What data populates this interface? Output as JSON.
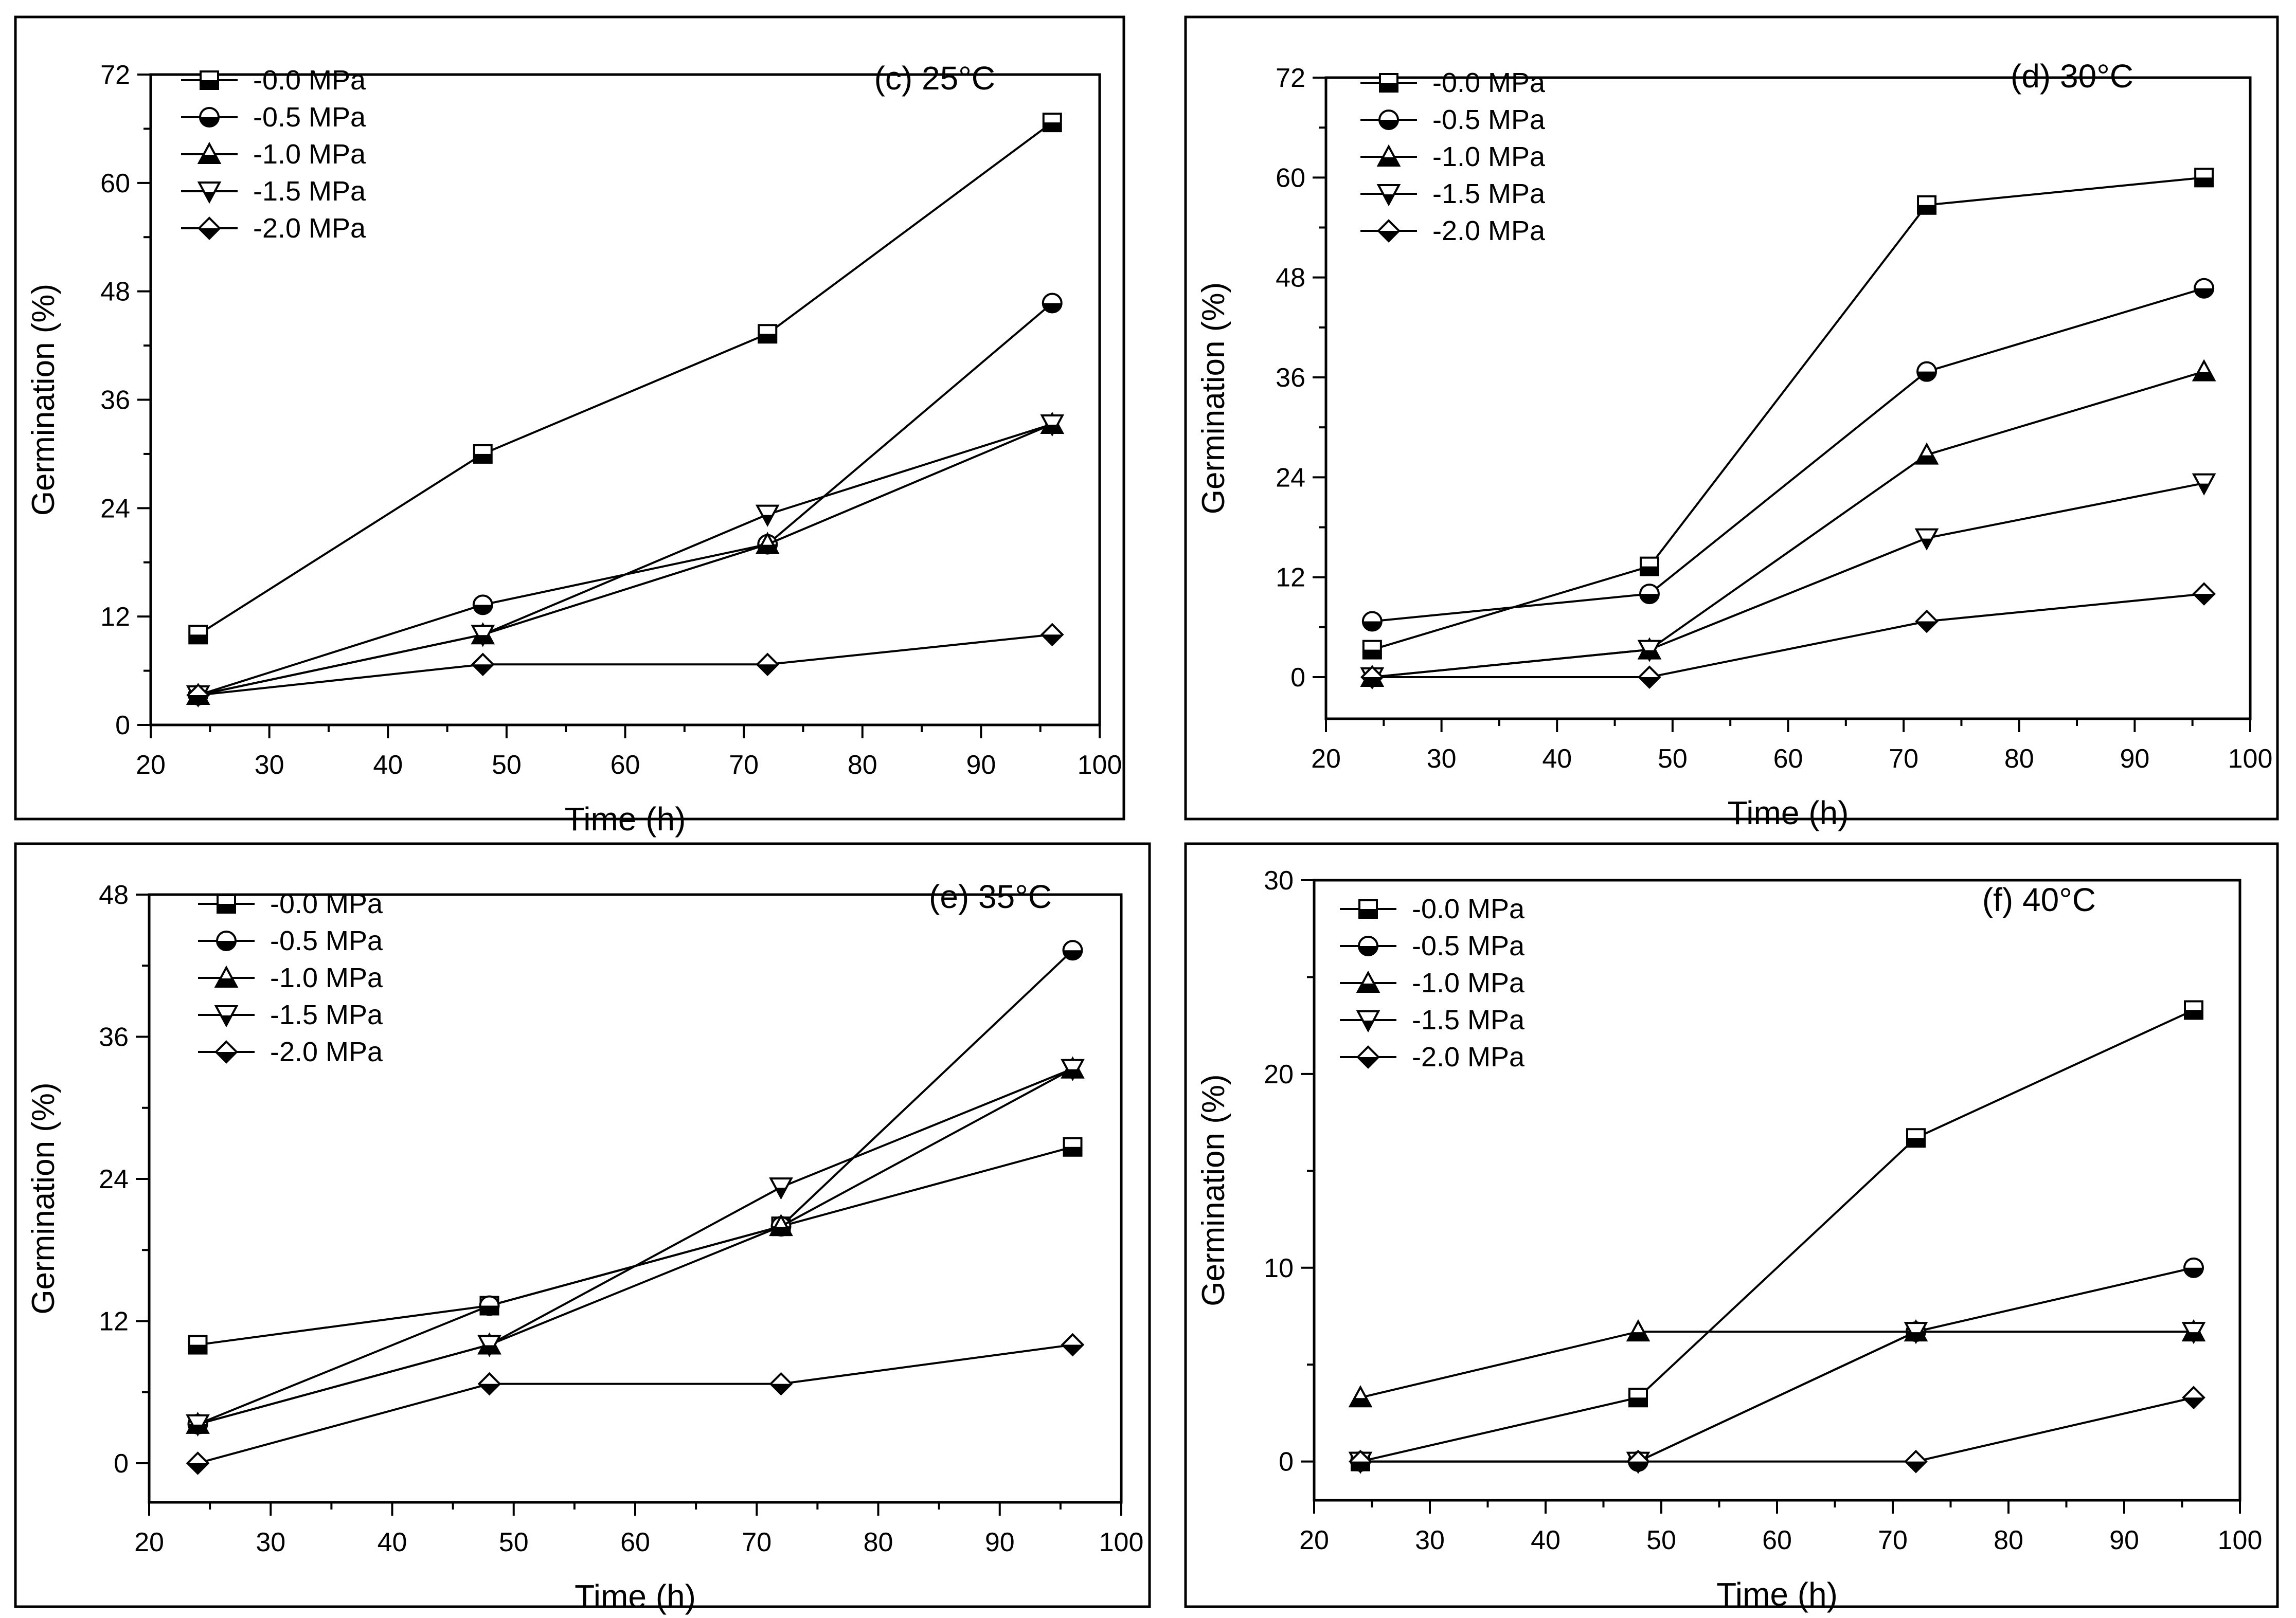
{
  "figure": {
    "description_type": "four-panel germination line chart",
    "marker_legend": [
      "-0.0 MPa",
      "-0.5 MPa",
      "-1.0 MPa",
      "-1.5 MPa",
      "-2.0 MPa"
    ]
  },
  "chart_data": [
    {
      "type": "line",
      "title": "(c) 25°C",
      "xlabel": "Time (h)",
      "ylabel": "Germination (%)",
      "xlim": [
        20,
        100
      ],
      "ylim": [
        0,
        72
      ],
      "xticks": [
        20,
        30,
        40,
        50,
        60,
        70,
        80,
        90,
        100
      ],
      "yticks": [
        0,
        12,
        24,
        36,
        48,
        60,
        72
      ],
      "x": [
        24,
        48,
        72,
        96
      ],
      "legend_position": "top-left",
      "series": [
        {
          "name": "-0.0 MPa",
          "marker": "square",
          "values": [
            10,
            30,
            43.3,
            66.7
          ]
        },
        {
          "name": "-0.5 MPa",
          "marker": "circle",
          "values": [
            3.3,
            13.3,
            20,
            46.7
          ]
        },
        {
          "name": "-1.0 MPa",
          "marker": "triangle-up",
          "values": [
            3.3,
            10,
            20,
            33.3
          ]
        },
        {
          "name": "-1.5 MPa",
          "marker": "triangle-down",
          "values": [
            3.3,
            10,
            23.3,
            33.3
          ]
        },
        {
          "name": "-2.0 MPa",
          "marker": "diamond",
          "values": [
            3.3,
            6.7,
            6.7,
            10
          ]
        }
      ]
    },
    {
      "type": "line",
      "title": "(d) 30°C",
      "xlabel": "Time (h)",
      "ylabel": "Germination (%)",
      "xlim": [
        20,
        100
      ],
      "ylim": [
        -5,
        72
      ],
      "xticks": [
        20,
        30,
        40,
        50,
        60,
        70,
        80,
        90,
        100
      ],
      "yticks": [
        0,
        12,
        24,
        36,
        48,
        60,
        72
      ],
      "x": [
        24,
        48,
        72,
        96
      ],
      "legend_position": "top-left",
      "series": [
        {
          "name": "-0.0 MPa",
          "marker": "square",
          "values": [
            3.3,
            13.3,
            56.7,
            60
          ]
        },
        {
          "name": "-0.5 MPa",
          "marker": "circle",
          "values": [
            6.7,
            10,
            36.7,
            46.7
          ]
        },
        {
          "name": "-1.0 MPa",
          "marker": "triangle-up",
          "values": [
            0,
            3.3,
            26.7,
            36.7
          ]
        },
        {
          "name": "-1.5 MPa",
          "marker": "triangle-down",
          "values": [
            0,
            3.3,
            16.7,
            23.3
          ]
        },
        {
          "name": "-2.0 MPa",
          "marker": "diamond",
          "values": [
            0,
            0,
            6.7,
            10
          ]
        }
      ]
    },
    {
      "type": "line",
      "title": "(e) 35°C",
      "xlabel": "Time (h)",
      "ylabel": "Germination (%)",
      "xlim": [
        20,
        100
      ],
      "ylim": [
        -3.3,
        48
      ],
      "xticks": [
        20,
        30,
        40,
        50,
        60,
        70,
        80,
        90,
        100
      ],
      "yticks": [
        0,
        12,
        24,
        36,
        48
      ],
      "x": [
        24,
        48,
        72,
        96
      ],
      "legend_position": "top-left",
      "series": [
        {
          "name": "-0.0 MPa",
          "marker": "square",
          "values": [
            10,
            13.3,
            20,
            26.7
          ]
        },
        {
          "name": "-0.5 MPa",
          "marker": "circle",
          "values": [
            3.3,
            13.3,
            20,
            43.3
          ]
        },
        {
          "name": "-1.0 MPa",
          "marker": "triangle-up",
          "values": [
            3.3,
            10,
            20,
            33.3
          ]
        },
        {
          "name": "-1.5 MPa",
          "marker": "triangle-down",
          "values": [
            3.3,
            10,
            23.3,
            33.3
          ]
        },
        {
          "name": "-2.0 MPa",
          "marker": "diamond",
          "values": [
            0,
            6.7,
            6.7,
            10
          ]
        }
      ]
    },
    {
      "type": "line",
      "title": "(f) 40°C",
      "xlabel": "Time (h)",
      "ylabel": "Germination (%)",
      "xlim": [
        20,
        100
      ],
      "ylim": [
        -2,
        30
      ],
      "xticks": [
        20,
        30,
        40,
        50,
        60,
        70,
        80,
        90,
        100
      ],
      "yticks": [
        0,
        10,
        20,
        30
      ],
      "x": [
        24,
        48,
        72,
        96
      ],
      "legend_position": "top-left",
      "series": [
        {
          "name": "-0.0 MPa",
          "marker": "square",
          "values": [
            0,
            3.3,
            16.7,
            23.3
          ]
        },
        {
          "name": "-0.5 MPa",
          "marker": "circle",
          "values": [
            0,
            0,
            6.7,
            10
          ]
        },
        {
          "name": "-1.0 MPa",
          "marker": "triangle-up",
          "values": [
            3.3,
            6.7,
            6.7,
            6.7
          ]
        },
        {
          "name": "-1.5 MPa",
          "marker": "triangle-down",
          "values": [
            0,
            0,
            6.7,
            6.7
          ]
        },
        {
          "name": "-2.0 MPa",
          "marker": "diamond",
          "values": [
            0,
            0,
            0,
            3.3
          ]
        }
      ]
    }
  ]
}
